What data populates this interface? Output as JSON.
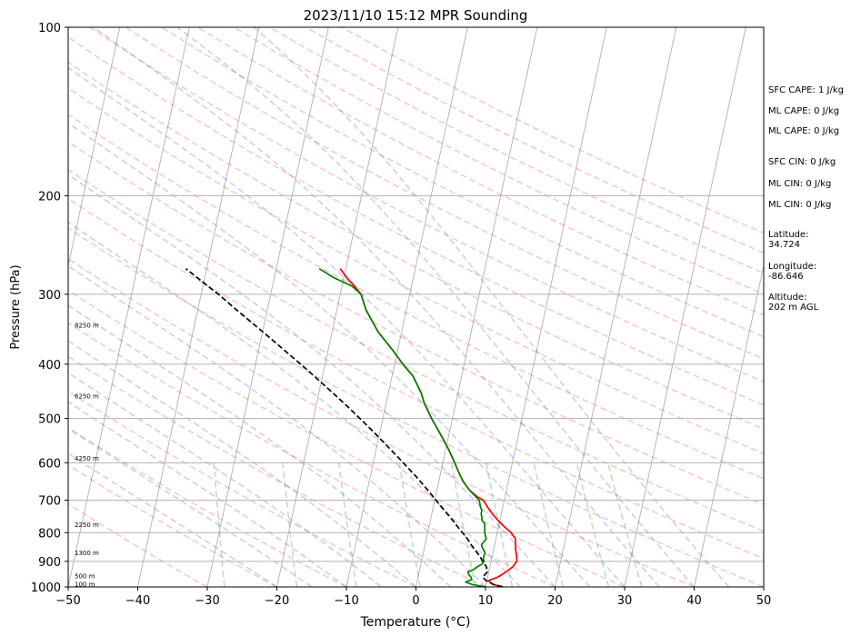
{
  "chart_data": {
    "type": "skew-t log-p sounding",
    "title": "2023/11/10 15:12 MPR Sounding",
    "xlabel": "Temperature (°C)",
    "ylabel": "Pressure (hPa)",
    "xlim": [
      -50,
      50
    ],
    "ylim": [
      1000,
      100
    ],
    "y_scale": "log",
    "grid": true,
    "x_ticks": [
      "−50",
      "−40",
      "−30",
      "−20",
      "−10",
      "0",
      "10",
      "20",
      "30",
      "40",
      "50"
    ],
    "x_tick_values": [
      -50,
      -40,
      -30,
      -20,
      -10,
      0,
      10,
      20,
      30,
      40,
      50
    ],
    "y_ticks": [
      "100",
      "200",
      "300",
      "400",
      "500",
      "600",
      "700",
      "800",
      "900",
      "1000"
    ],
    "y_tick_values": [
      100,
      200,
      300,
      400,
      500,
      600,
      700,
      800,
      900,
      1000
    ],
    "height_labels": [
      {
        "text": "100 m",
        "p": 987
      },
      {
        "text": "500 m",
        "p": 955
      },
      {
        "text": "1300 m",
        "p": 867
      },
      {
        "text": "2250 m",
        "p": 772
      },
      {
        "text": "4250 m",
        "p": 588
      },
      {
        "text": "6250 m",
        "p": 455
      },
      {
        "text": "8250 m",
        "p": 340
      }
    ],
    "series": [
      {
        "name": "",
        "color": "#ff0000",
        "kind": "temperature",
        "points": [
          [
            1000,
            12.5
          ],
          [
            990,
            11
          ],
          [
            975,
            10.2
          ],
          [
            960,
            11.5
          ],
          [
            940,
            12.5
          ],
          [
            920,
            13.3
          ],
          [
            900,
            13.7
          ],
          [
            880,
            13.5
          ],
          [
            860,
            13.2
          ],
          [
            840,
            13
          ],
          [
            820,
            12.8
          ],
          [
            800,
            12
          ],
          [
            780,
            10.8
          ],
          [
            760,
            9.7
          ],
          [
            740,
            8.7
          ],
          [
            720,
            7.8
          ],
          [
            700,
            7
          ],
          [
            690,
            6
          ],
          [
            670,
            4.6
          ],
          [
            650,
            3.6
          ],
          [
            630,
            2.8
          ],
          [
            600,
            1.7
          ],
          [
            570,
            0.5
          ],
          [
            540,
            -0.9
          ],
          [
            500,
            -3
          ],
          [
            470,
            -4.5
          ],
          [
            450,
            -5.3
          ],
          [
            420,
            -7
          ],
          [
            400,
            -8.8
          ],
          [
            380,
            -10.5
          ],
          [
            350,
            -13.4
          ],
          [
            320,
            -15.8
          ],
          [
            300,
            -17
          ],
          [
            290,
            -18.2
          ],
          [
            280,
            -19.6
          ],
          [
            270,
            -20.8
          ]
        ]
      },
      {
        "name": "",
        "color": "#008000",
        "kind": "dewpoint",
        "points": [
          [
            1000,
            10
          ],
          [
            990,
            8
          ],
          [
            980,
            7
          ],
          [
            970,
            7.8
          ],
          [
            960,
            7.6
          ],
          [
            950,
            7.2
          ],
          [
            940,
            7
          ],
          [
            930,
            7.8
          ],
          [
            920,
            8.2
          ],
          [
            910,
            8.8
          ],
          [
            900,
            9
          ],
          [
            890,
            8.8
          ],
          [
            880,
            8.8
          ],
          [
            870,
            8.9
          ],
          [
            860,
            8.6
          ],
          [
            850,
            8.3
          ],
          [
            840,
            8.1
          ],
          [
            830,
            8.4
          ],
          [
            820,
            8.6
          ],
          [
            810,
            8.4
          ],
          [
            800,
            8.2
          ],
          [
            790,
            8.1
          ],
          [
            780,
            8
          ],
          [
            770,
            7.9
          ],
          [
            760,
            7.4
          ],
          [
            750,
            7.3
          ],
          [
            740,
            7.1
          ],
          [
            730,
            7.1
          ],
          [
            720,
            6.8
          ],
          [
            710,
            6.6
          ],
          [
            700,
            6.4
          ],
          [
            690,
            5.8
          ],
          [
            670,
            4.6
          ],
          [
            650,
            3.6
          ],
          [
            630,
            2.8
          ],
          [
            600,
            1.7
          ],
          [
            570,
            0.5
          ],
          [
            540,
            -0.9
          ],
          [
            500,
            -3
          ],
          [
            470,
            -4.5
          ],
          [
            450,
            -5.3
          ],
          [
            420,
            -7
          ],
          [
            400,
            -8.8
          ],
          [
            380,
            -10.5
          ],
          [
            350,
            -13.4
          ],
          [
            320,
            -15.8
          ],
          [
            300,
            -17
          ],
          [
            290,
            -18.6
          ],
          [
            280,
            -21.5
          ],
          [
            270,
            -23.8
          ]
        ]
      },
      {
        "name": "",
        "color": "#000000",
        "kind": "parcel",
        "points": [
          [
            1000,
            12.5
          ],
          [
            990,
            11.1
          ],
          [
            975,
            9.9
          ],
          [
            960,
            9.3
          ],
          [
            940,
            9.8
          ],
          [
            920,
            9.5
          ],
          [
            900,
            8.8
          ],
          [
            880,
            8.2
          ],
          [
            860,
            7.4
          ],
          [
            840,
            6.6
          ],
          [
            820,
            5.9
          ],
          [
            800,
            5
          ],
          [
            780,
            4.1
          ],
          [
            760,
            3.2
          ],
          [
            740,
            2.2
          ],
          [
            720,
            1.2
          ],
          [
            700,
            0.2
          ],
          [
            670,
            -1.4
          ],
          [
            640,
            -3.1
          ],
          [
            600,
            -5.7
          ],
          [
            560,
            -8.5
          ],
          [
            520,
            -11.6
          ],
          [
            500,
            -13.3
          ],
          [
            480,
            -15.1
          ],
          [
            450,
            -18
          ],
          [
            420,
            -21.2
          ],
          [
            400,
            -23.5
          ],
          [
            380,
            -26
          ],
          [
            360,
            -28.6
          ],
          [
            340,
            -31.4
          ],
          [
            320,
            -34.4
          ],
          [
            300,
            -37.5
          ],
          [
            290,
            -39.3
          ],
          [
            280,
            -41.1
          ],
          [
            270,
            -43
          ]
        ]
      }
    ],
    "background_lines": [
      "dry adiabats",
      "moist adiabats",
      "mixing ratio lines",
      "skewed isotherms"
    ]
  },
  "side_info": {
    "sfc_cape": "SFC CAPE: 1 J/kg",
    "ml_cape_1": "ML CAPE: 0 J/kg",
    "ml_cape_2": "ML CAPE: 0 J/kg",
    "sfc_cin": "SFC CIN: 0 J/kg",
    "ml_cin_1": "ML CIN: 0 J/kg",
    "ml_cin_2": "ML CIN: 0 J/kg",
    "latitude_label": "Latitude:",
    "latitude_value": "34.724",
    "longitude_label": "Longitude:",
    "longitude_value": "-86.646",
    "altitude_label": "Altitude:",
    "altitude_value": "202 m AGL"
  }
}
